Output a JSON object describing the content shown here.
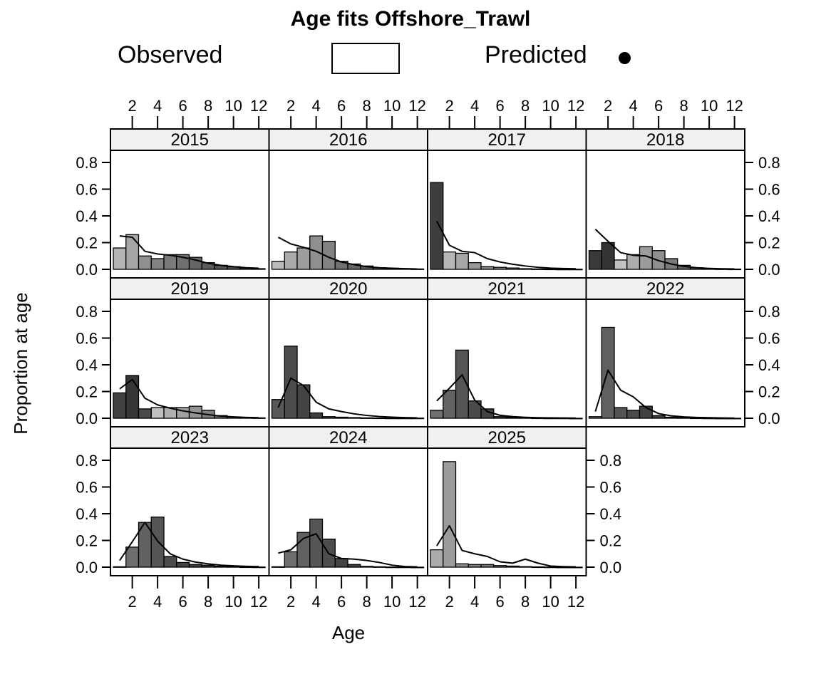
{
  "title": "Age fits Offshore_Trawl",
  "legend": {
    "observed_label": "Observed",
    "predicted_label": "Predicted",
    "observed_swatch": "open-rectangle",
    "predicted_marker": "filled-dot"
  },
  "axes": {
    "x_label": "Age",
    "y_label": "Proportion at age"
  },
  "colors": {
    "strip_bg": "#f0f0f0",
    "panel_bg": "#ffffff",
    "stroke": "#000000"
  },
  "chart_data": {
    "type": "bar",
    "subtype": "lattice-age-composition-fit",
    "title": "Age fits Offshore_Trawl",
    "xlabel": "Age",
    "ylabel": "Proportion at age",
    "x_ticks": [
      2,
      4,
      6,
      8,
      10,
      12
    ],
    "y_ticks": [
      "0.0",
      "0.2",
      "0.4",
      "0.6",
      "0.8"
    ],
    "ages": [
      1,
      2,
      3,
      4,
      5,
      6,
      7,
      8,
      9,
      10,
      11,
      12
    ],
    "ylim": [
      0,
      0.89
    ],
    "grid": false,
    "legend_position": "top",
    "series_names": [
      "Observed",
      "Predicted"
    ],
    "layout_rows": [
      [
        "2015",
        "2016",
        "2017",
        "2018"
      ],
      [
        "2019",
        "2020",
        "2021",
        "2022"
      ],
      [
        "2023",
        "2024",
        "2025",
        null
      ]
    ],
    "panels": [
      {
        "year": "2015",
        "observed": [
          0.16,
          0.26,
          0.1,
          0.08,
          0.11,
          0.11,
          0.09,
          0.05,
          0.03,
          0.02,
          0.01,
          0.005
        ],
        "predicted": [
          0.25,
          0.24,
          0.135,
          0.115,
          0.105,
          0.09,
          0.07,
          0.045,
          0.03,
          0.02,
          0.012,
          0.008
        ],
        "fills": [
          "#b3b3b3",
          "#a6a6a6",
          "#8f8f8f",
          "#828282",
          "#7a7a7a",
          "#707070",
          "#666666",
          "#5c5c5c",
          "#545454",
          "#4d4d4d",
          "#474747",
          "#424242"
        ]
      },
      {
        "year": "2016",
        "observed": [
          0.06,
          0.13,
          0.16,
          0.25,
          0.21,
          0.06,
          0.04,
          0.025,
          0.012,
          0.008,
          0.005,
          0.003
        ],
        "predicted": [
          0.24,
          0.19,
          0.165,
          0.135,
          0.09,
          0.055,
          0.035,
          0.02,
          0.012,
          0.008,
          0.005,
          0.003
        ],
        "fills": [
          "#bababa",
          "#ababab",
          "#9e9e9e",
          "#8f8f8f",
          "#838383",
          "#707070",
          "#666666",
          "#5c5c5c",
          "#545454",
          "#4d4d4d",
          "#474747",
          "#424242"
        ]
      },
      {
        "year": "2017",
        "observed": [
          0.65,
          0.13,
          0.12,
          0.05,
          0.02,
          0.015,
          0.01,
          0.005,
          0.003,
          0.002,
          0.001,
          0.001
        ],
        "predicted": [
          0.36,
          0.18,
          0.135,
          0.125,
          0.08,
          0.055,
          0.038,
          0.025,
          0.015,
          0.009,
          0.006,
          0.004
        ],
        "fills": [
          "#3d3d3d",
          "#b5b5b5",
          "#a6a6a6",
          "#989898",
          "#8a8a8a",
          "#7d7d7d",
          "#717171",
          "#666666",
          "#5c5c5c",
          "#545454",
          "#4d4d4d",
          "#474747"
        ]
      },
      {
        "year": "2018",
        "observed": [
          0.14,
          0.2,
          0.07,
          0.11,
          0.17,
          0.14,
          0.08,
          0.03,
          0.012,
          0.006,
          0.003,
          0.002
        ],
        "predicted": [
          0.3,
          0.21,
          0.125,
          0.105,
          0.1,
          0.065,
          0.04,
          0.022,
          0.012,
          0.007,
          0.004,
          0.003
        ],
        "fills": [
          "#3a3a3a",
          "#343434",
          "#c2c2c2",
          "#adadad",
          "#9c9c9c",
          "#8f8f8f",
          "#7a7a7a",
          "#606060",
          "#565656",
          "#4e4e4e",
          "#484848",
          "#434343"
        ]
      },
      {
        "year": "2019",
        "observed": [
          0.19,
          0.32,
          0.07,
          0.08,
          0.08,
          0.08,
          0.09,
          0.06,
          0.02,
          0.01,
          0.005,
          0.003
        ],
        "predicted": [
          0.22,
          0.29,
          0.15,
          0.1,
          0.075,
          0.055,
          0.04,
          0.027,
          0.016,
          0.01,
          0.006,
          0.004
        ],
        "fills": [
          "#424242",
          "#373737",
          "#4a4a4a",
          "#c0c0c0",
          "#b0b0b0",
          "#a1a1a1",
          "#939393",
          "#7e7e7e",
          "#6b6b6b",
          "#5d5d5d",
          "#535353",
          "#4b4b4b"
        ]
      },
      {
        "year": "2020",
        "observed": [
          0.14,
          0.54,
          0.25,
          0.04,
          0.012,
          0.008,
          0.005,
          0.003,
          0.002,
          0.001,
          0.001,
          0.001
        ],
        "predicted": [
          0.08,
          0.3,
          0.245,
          0.12,
          0.07,
          0.05,
          0.033,
          0.021,
          0.013,
          0.008,
          0.005,
          0.003
        ],
        "fills": [
          "#585858",
          "#4c4c4c",
          "#444444",
          "#3e3e3e",
          "#393939",
          "#353535",
          "#323232",
          "#303030",
          "#2e2e2e",
          "#2d2d2d",
          "#2c2c2c",
          "#2b2b2b"
        ]
      },
      {
        "year": "2021",
        "observed": [
          0.06,
          0.21,
          0.51,
          0.13,
          0.07,
          0.012,
          0.007,
          0.004,
          0.002,
          0.001,
          0.001,
          0.0
        ],
        "predicted": [
          0.13,
          0.225,
          0.325,
          0.135,
          0.05,
          0.022,
          0.012,
          0.007,
          0.004,
          0.003,
          0.002,
          0.001
        ],
        "fills": [
          "#707070",
          "#636363",
          "#555555",
          "#4b4b4b",
          "#424242",
          "#3b3b3b",
          "#363636",
          "#323232",
          "#2f2f2f",
          "#2d2d2d",
          "#2b2b2b",
          "#2a2a2a"
        ]
      },
      {
        "year": "2022",
        "observed": [
          0.012,
          0.68,
          0.08,
          0.06,
          0.09,
          0.02,
          0.008,
          0.004,
          0.002,
          0.001,
          0.0,
          0.0
        ],
        "predicted": [
          0.05,
          0.36,
          0.21,
          0.16,
          0.08,
          0.035,
          0.018,
          0.01,
          0.006,
          0.004,
          0.002,
          0.001
        ],
        "fills": [
          "#6e6e6e",
          "#606060",
          "#545454",
          "#4b4b4b",
          "#424242",
          "#3b3b3b",
          "#363636",
          "#323232",
          "#2f2f2f",
          "#2d2d2d",
          "#2b2b2b",
          "#2a2a2a"
        ]
      },
      {
        "year": "2023",
        "observed": [
          0.003,
          0.15,
          0.335,
          0.375,
          0.08,
          0.035,
          0.02,
          0.015,
          0.008,
          0.004,
          0.002,
          0.001
        ],
        "predicted": [
          0.05,
          0.19,
          0.335,
          0.195,
          0.1,
          0.06,
          0.038,
          0.025,
          0.015,
          0.01,
          0.006,
          0.004
        ],
        "fills": [
          "#7d7d7d",
          "#6f6f6f",
          "#616161",
          "#565656",
          "#4c4c4c",
          "#434343",
          "#3c3c3c",
          "#363636",
          "#313131",
          "#2e2e2e",
          "#2b2b2b",
          "#292929"
        ]
      },
      {
        "year": "2024",
        "observed": [
          0.003,
          0.115,
          0.26,
          0.36,
          0.21,
          0.065,
          0.02,
          0.006,
          0.003,
          0.001,
          0.001,
          0.0
        ],
        "predicted": [
          0.105,
          0.13,
          0.215,
          0.25,
          0.1,
          0.065,
          0.06,
          0.05,
          0.035,
          0.015,
          0.005,
          0.002
        ],
        "fills": [
          "#7a7a7a",
          "#6e6e6e",
          "#616161",
          "#565656",
          "#4d4d4d",
          "#444444",
          "#3d3d3d",
          "#373737",
          "#323232",
          "#2e2e2e",
          "#2b2b2b",
          "#292929"
        ]
      },
      {
        "year": "2025",
        "observed": [
          0.13,
          0.79,
          0.025,
          0.02,
          0.02,
          0.012,
          0.008,
          0.004,
          0.002,
          0.001,
          0.0,
          0.0
        ],
        "predicted": [
          0.16,
          0.31,
          0.125,
          0.1,
          0.08,
          0.04,
          0.03,
          0.06,
          0.03,
          0.008,
          0.004,
          0.002
        ],
        "fills": [
          "#ababab",
          "#9c9c9c",
          "#8e8e8e",
          "#818181",
          "#757575",
          "#6a6a6a",
          "#606060",
          "#575757",
          "#4f4f4f",
          "#484848",
          "#424242",
          "#3d3d3d"
        ]
      }
    ]
  }
}
